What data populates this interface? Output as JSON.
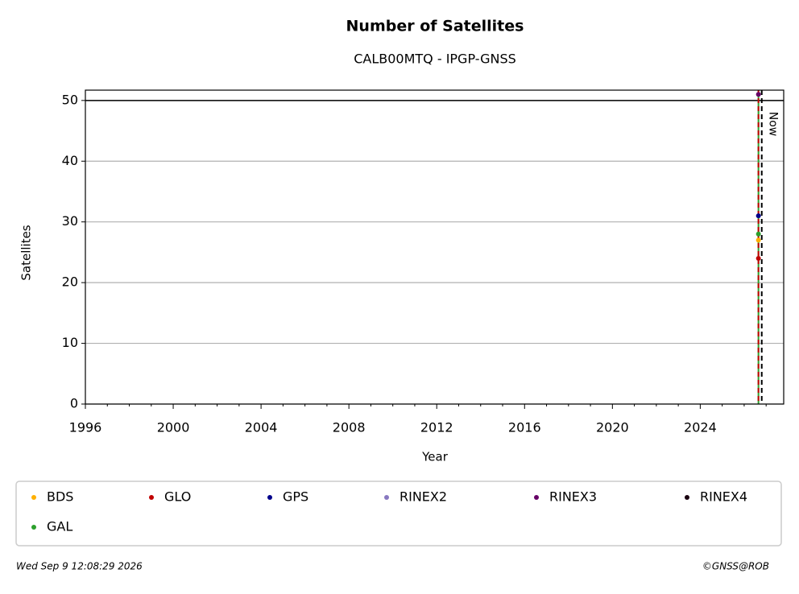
{
  "chart_data": {
    "type": "scatter",
    "title": "Number of Satellites",
    "subtitle": "CALB00MTQ - IPGP-GNSS",
    "xlabel": "Year",
    "ylabel": "Satellites",
    "x": [
      2026.65
    ],
    "series": [
      {
        "name": "BDS",
        "color": "#ffb000",
        "values": [
          27
        ]
      },
      {
        "name": "GLO",
        "color": "#c00000",
        "values": [
          24
        ]
      },
      {
        "name": "GPS",
        "color": "#00008b",
        "values": [
          31
        ]
      },
      {
        "name": "RINEX2",
        "color": "#8878c0",
        "values": [
          null
        ]
      },
      {
        "name": "RINEX3",
        "color": "#660066",
        "values": [
          51
        ]
      },
      {
        "name": "RINEX4",
        "color": "#1a0010",
        "values": [
          null
        ]
      },
      {
        "name": "GAL",
        "color": "#2ca02c",
        "values": [
          28
        ]
      }
    ],
    "xlim": [
      1996,
      2027.8
    ],
    "ylim": [
      0,
      51.7
    ],
    "xticks": [
      1996,
      2000,
      2004,
      2008,
      2012,
      2016,
      2020,
      2024
    ],
    "xticks_minor": [
      1997,
      1998,
      1999,
      2001,
      2002,
      2003,
      2005,
      2006,
      2007,
      2009,
      2010,
      2011,
      2013,
      2014,
      2015,
      2017,
      2018,
      2019,
      2021,
      2022,
      2023,
      2025,
      2026,
      2027
    ],
    "yticks": [
      0,
      10,
      20,
      30,
      40,
      50
    ],
    "grid": true,
    "hline": 50,
    "data_line": 2026.65,
    "now_line": {
      "x": 2026.8,
      "label": "Now"
    },
    "footer_left": "Wed Sep  9 12:08:29 2026",
    "footer_right": "©GNSS@ROB"
  }
}
